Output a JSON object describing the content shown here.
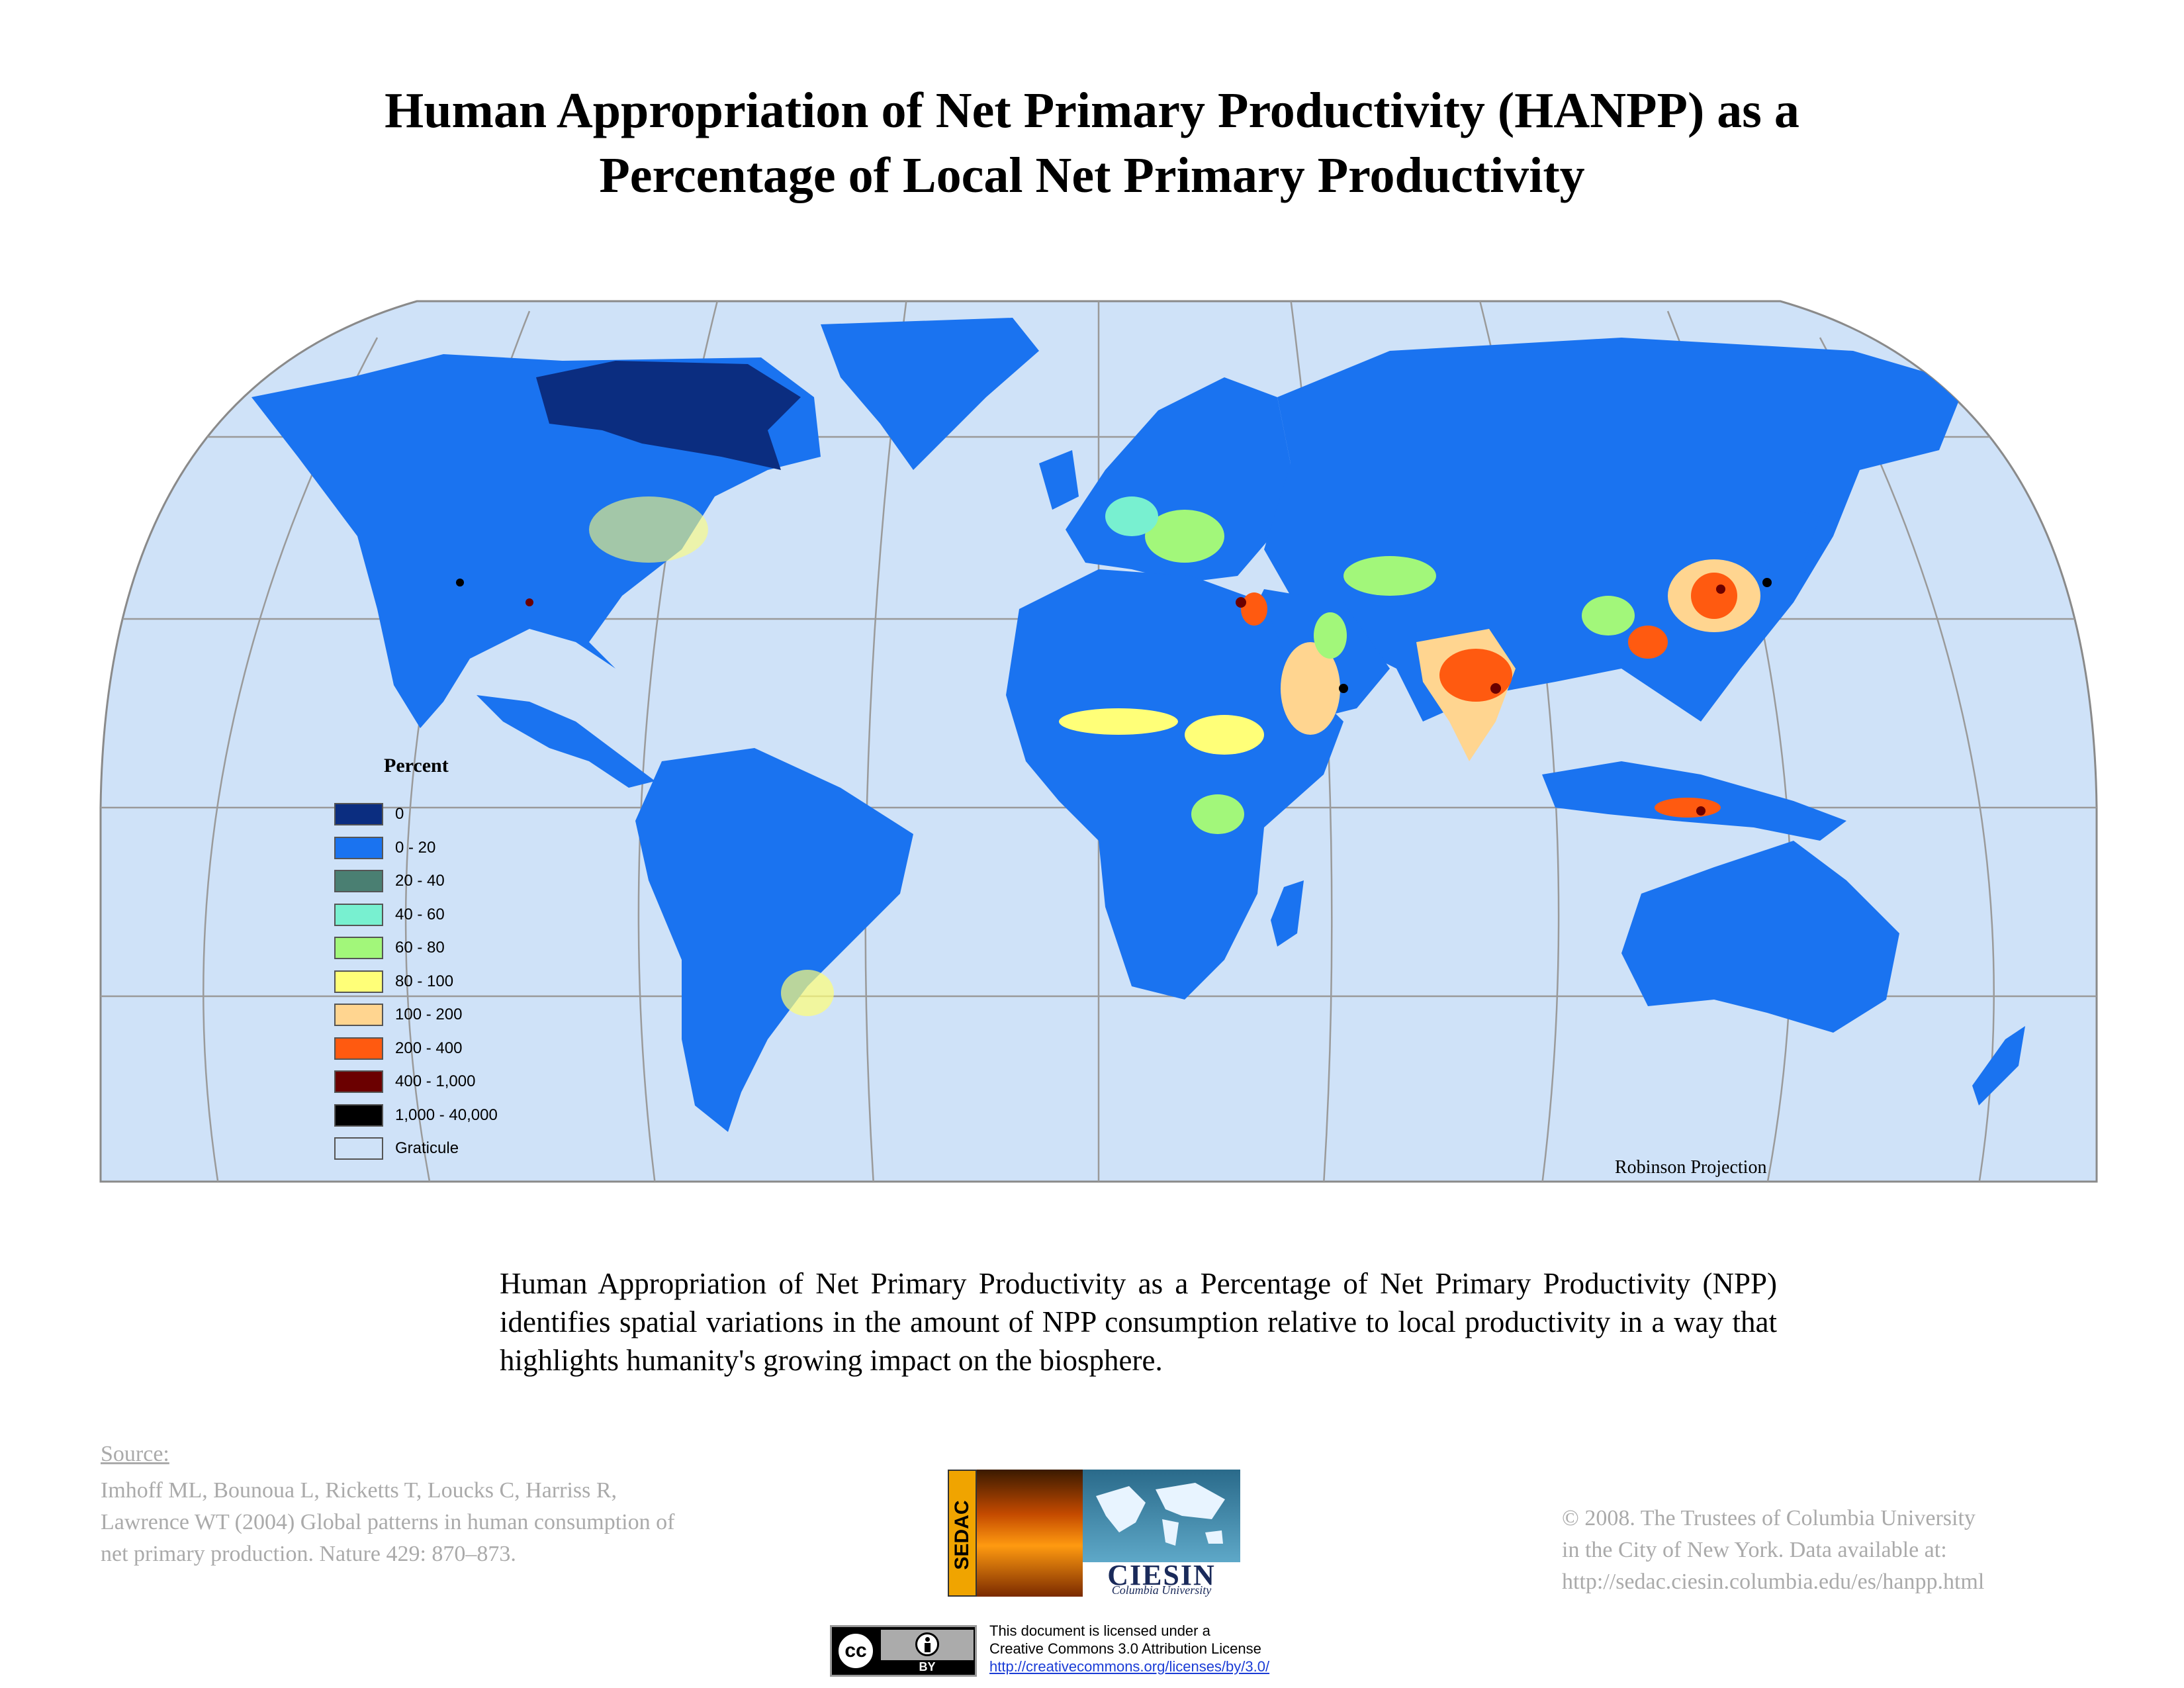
{
  "title": {
    "line1": "Human Appropriation of Net Primary Productivity (HANPP) as a",
    "line2": "Percentage of Local Net Primary Productivity"
  },
  "map": {
    "projection_label": "Robinson Projection",
    "colors": {
      "ocean": "#cfe2f8",
      "land_base": "#1a73f0",
      "no_appropriation": "#0b2d80",
      "graticule": "#9a9a9a"
    }
  },
  "legend": {
    "title": "Percent",
    "items": [
      {
        "label": "0",
        "color": "#0b2d80"
      },
      {
        "label": "0 - 20",
        "color": "#1a73f0"
      },
      {
        "label": "20 - 40",
        "color": "#4a7f72"
      },
      {
        "label": "40 - 60",
        "color": "#78f0d0"
      },
      {
        "label": "60 - 80",
        "color": "#a2f77a"
      },
      {
        "label": "80 - 100",
        "color": "#ffff78"
      },
      {
        "label": "100 - 200",
        "color": "#ffd590"
      },
      {
        "label": "200 - 400",
        "color": "#ff5a10"
      },
      {
        "label": "400 - 1,000",
        "color": "#6b0000"
      },
      {
        "label": "1,000 - 40,000",
        "color": "#000000"
      },
      {
        "label": "Graticule",
        "color": "#cfe2f8"
      }
    ]
  },
  "description": "Human Appropriation of Net Primary Productivity as a Percentage of Net Primary Productivity (NPP) identifies spatial variations in the amount of NPP consumption relative to local productivity in a way that highlights humanity's growing impact on the biosphere.",
  "source": {
    "heading": "Source:",
    "citation": "Imhoff ML, Bounoua L, Ricketts T, Loucks C, Harriss R, Lawrence WT (2004) Global patterns in human consumption of net primary production. Nature 429: 870–873."
  },
  "logos": {
    "sedac": "SEDAC",
    "ciesin": "CIESIN",
    "ciesin_sub": "Columbia University"
  },
  "copyright": {
    "line1": "© 2008. The Trustees of Columbia University",
    "line2": "in the City of New York. Data available at:",
    "line3": "http://sedac.ciesin.columbia.edu/es/hanpp.html"
  },
  "license": {
    "badge_cc": "cc",
    "badge_by": "BY",
    "line1": "This document is licensed under a",
    "line2": "Creative Commons 3.0 Attribution License",
    "link": "http://creativecommons.org/licenses/by/3.0/"
  }
}
